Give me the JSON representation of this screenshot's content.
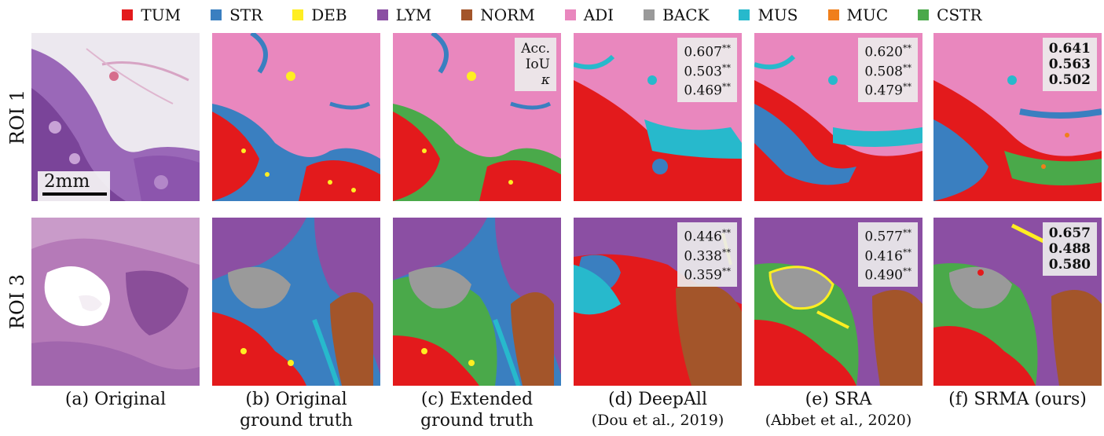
{
  "legend": [
    {
      "label": "TUM",
      "color": "#e31a1c"
    },
    {
      "label": "STR",
      "color": "#3a7fc0"
    },
    {
      "label": "DEB",
      "color": "#ffee22"
    },
    {
      "label": "LYM",
      "color": "#8b4fa3"
    },
    {
      "label": "NORM",
      "color": "#a3552a"
    },
    {
      "label": "ADI",
      "color": "#e987be"
    },
    {
      "label": "BACK",
      "color": "#9a9a9a"
    },
    {
      "label": "MUS",
      "color": "#27b9cc"
    },
    {
      "label": "MUC",
      "color": "#f07f1b"
    },
    {
      "label": "CSTR",
      "color": "#4aa94a"
    }
  ],
  "rows": [
    "ROI 1",
    "ROI 3"
  ],
  "scale_bar": "2mm",
  "metric_labels": [
    "Acc.",
    "IoU",
    "κ"
  ],
  "scores": {
    "roi1": {
      "deepall": [
        "0.607",
        "0.503",
        "0.469"
      ],
      "sra": [
        "0.620",
        "0.508",
        "0.479"
      ],
      "srma": [
        "0.641",
        "0.563",
        "0.502"
      ]
    },
    "roi3": {
      "deepall": [
        "0.446",
        "0.338",
        "0.359"
      ],
      "sra": [
        "0.577",
        "0.416",
        "0.490"
      ],
      "srma": [
        "0.657",
        "0.488",
        "0.580"
      ]
    }
  },
  "significance_mark": "**",
  "captions": {
    "a": "(a) Original",
    "b1": "(b) Original",
    "b2": "ground truth",
    "c1": "(c) Extended",
    "c2": "ground truth",
    "d1": "(d) DeepAll",
    "d2": "(Dou et al., 2019)",
    "e1": "(e) SRA",
    "e2": "(Abbet et al., 2020)",
    "f1": "(f) SRMA (ours)"
  }
}
